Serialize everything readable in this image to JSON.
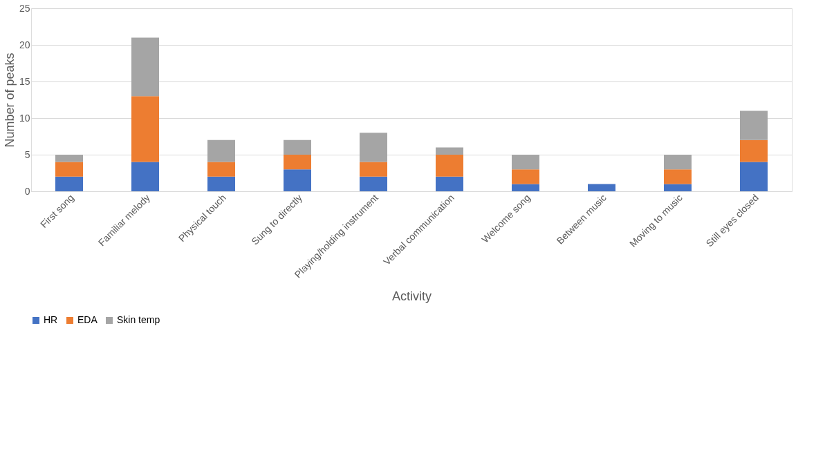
{
  "chart_data": {
    "type": "bar",
    "stacked": true,
    "xlabel": "Activity",
    "ylabel": "Number of peaks",
    "categories": [
      "First song",
      "Familiar melody",
      "Physical touch",
      "Sung to directly",
      "Playing/holding instrument",
      "Verbal communication",
      "Welcome song",
      "Between music",
      "Moving to music",
      "Still eyes closed"
    ],
    "series": [
      {
        "name": "HR",
        "color": "#4472c4",
        "values": [
          2,
          4,
          2,
          3,
          2,
          2,
          1,
          1,
          1,
          4
        ]
      },
      {
        "name": "EDA",
        "color": "#ed7d31",
        "values": [
          2,
          9,
          2,
          2,
          2,
          3,
          2,
          0,
          2,
          3
        ]
      },
      {
        "name": "Skin temp",
        "color": "#a5a5a5",
        "values": [
          1,
          8,
          3,
          2,
          4,
          1,
          2,
          0,
          2,
          4
        ]
      }
    ],
    "ylim": [
      0,
      25
    ],
    "yticks": [
      0,
      5,
      10,
      15,
      20,
      25
    ],
    "grid": "y",
    "legend": "bottom"
  }
}
